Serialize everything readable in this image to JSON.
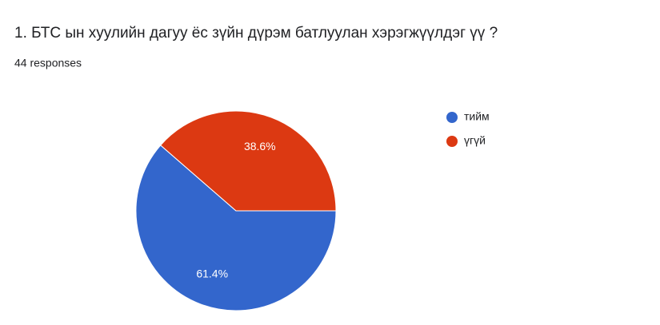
{
  "chart_data": {
    "type": "pie",
    "title": "1. БТС ын хуулийн дагуу ёс зүйн дүрэм батлуулан хэрэгжүүлдэг үү ?",
    "subtitle": "44 responses",
    "categories": [
      "тийм",
      "үгүй"
    ],
    "values": [
      61.4,
      38.6
    ],
    "value_labels": [
      "61.4%",
      "38.6%"
    ],
    "colors": [
      "#3366cc",
      "#dc3912"
    ],
    "legend": "right"
  }
}
